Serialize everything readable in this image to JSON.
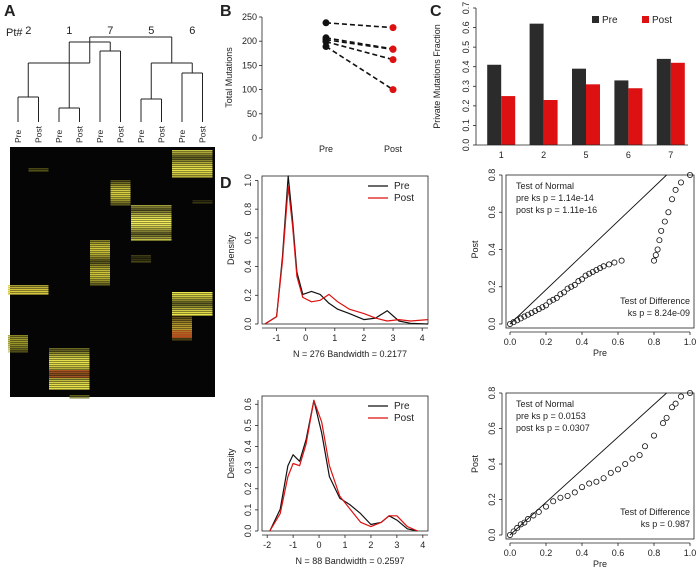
{
  "panels": {
    "a": "A",
    "b": "B",
    "c": "C",
    "d": "D"
  },
  "panelA": {
    "pt_label": "Pt#",
    "patients": [
      "2",
      "1",
      "7",
      "5",
      "6"
    ],
    "columns": [
      "Pre",
      "Post",
      "Pre",
      "Post",
      "Pre",
      "Post",
      "Pre",
      "Post",
      "Pre",
      "Post"
    ]
  },
  "chart_data": [
    {
      "id": "B",
      "type": "line",
      "ylabel": "Total Mutations",
      "categories": [
        "Pre",
        "Post"
      ],
      "ylim": [
        0,
        250
      ],
      "yticks": [
        0,
        50,
        100,
        150,
        200,
        250
      ],
      "series": [
        {
          "values": [
            238,
            228
          ]
        },
        {
          "values": [
            207,
            184
          ]
        },
        {
          "values": [
            203,
            183
          ]
        },
        {
          "values": [
            199,
            162
          ]
        },
        {
          "values": [
            189,
            100
          ]
        }
      ],
      "colors": {
        "pre": "#111111",
        "post": "#dd1111"
      }
    },
    {
      "id": "C",
      "type": "bar",
      "ylabel": "Private Mutations Fraction",
      "categories": [
        "1",
        "2",
        "5",
        "6",
        "7"
      ],
      "ylim": [
        0,
        0.7
      ],
      "yticks": [
        "0.0",
        "0.1",
        "0.2",
        "0.3",
        "0.4",
        "0.5",
        "0.6",
        "0.7"
      ],
      "legend": [
        "Pre",
        "Post"
      ],
      "legend_position": "top-right",
      "series": [
        {
          "name": "Pre",
          "values": [
            0.41,
            0.62,
            0.39,
            0.33,
            0.44
          ],
          "color": "#2b2b2b"
        },
        {
          "name": "Post",
          "values": [
            0.25,
            0.23,
            0.31,
            0.29,
            0.42
          ],
          "color": "#dd1111"
        }
      ]
    },
    {
      "id": "D-density-1",
      "type": "line",
      "ylabel": "Density",
      "xlabel": "N = 276   Bandwidth = 0.2177",
      "xlim": [
        -1.5,
        4.2
      ],
      "ylim": [
        0,
        1.0
      ],
      "xticks": [
        "-1",
        "0",
        "1",
        "2",
        "3",
        "4"
      ],
      "yticks": [
        "0.0",
        "0.2",
        "0.4",
        "0.6",
        "0.8",
        "1.0"
      ],
      "legend": [
        "Pre",
        "Post"
      ],
      "legend_position": "top-right",
      "series": [
        {
          "name": "Pre",
          "color": "#111111",
          "x": [
            -1.4,
            -1.0,
            -0.8,
            -0.6,
            -0.45,
            -0.3,
            -0.1,
            0.2,
            0.5,
            0.8,
            1.1,
            1.5,
            2.0,
            2.4,
            2.8,
            3.2,
            3.6,
            4.2
          ],
          "y": [
            0.0,
            0.05,
            0.45,
            1.0,
            0.7,
            0.35,
            0.2,
            0.22,
            0.2,
            0.14,
            0.1,
            0.07,
            0.03,
            0.04,
            0.09,
            0.02,
            0.005,
            0.0
          ]
        },
        {
          "name": "Post",
          "color": "#dd1111",
          "x": [
            -1.4,
            -1.0,
            -0.8,
            -0.6,
            -0.45,
            -0.3,
            -0.1,
            0.2,
            0.5,
            0.8,
            1.1,
            1.5,
            2.0,
            2.4,
            2.8,
            3.2,
            3.6,
            4.2
          ],
          "y": [
            0.0,
            0.05,
            0.42,
            0.93,
            0.66,
            0.32,
            0.18,
            0.15,
            0.16,
            0.2,
            0.15,
            0.1,
            0.07,
            0.04,
            0.02,
            0.03,
            0.02,
            0.03
          ]
        }
      ]
    },
    {
      "id": "D-qq-1",
      "type": "scatter",
      "xlabel": "Pre",
      "ylabel": "Post",
      "xlim": [
        0,
        1
      ],
      "ylim": [
        0,
        0.8
      ],
      "xticks": [
        "0.0",
        "0.2",
        "0.4",
        "0.6",
        "0.8",
        "1.0"
      ],
      "yticks": [
        "0.0",
        "0.2",
        "0.4",
        "0.6",
        "0.8"
      ],
      "annotations": {
        "normal_title": "Test of Normal",
        "normal_pre": "pre ks p = 1.14e-14",
        "normal_post": "post ks p = 1.11e-16",
        "diff_title": "Test of Difference",
        "diff_ks": "ks p = 8.24e-09"
      },
      "points": [
        [
          0.0,
          0.0
        ],
        [
          0.02,
          0.01
        ],
        [
          0.04,
          0.02
        ],
        [
          0.06,
          0.03
        ],
        [
          0.08,
          0.04
        ],
        [
          0.1,
          0.05
        ],
        [
          0.12,
          0.06
        ],
        [
          0.14,
          0.07
        ],
        [
          0.16,
          0.08
        ],
        [
          0.18,
          0.09
        ],
        [
          0.2,
          0.1
        ],
        [
          0.22,
          0.12
        ],
        [
          0.24,
          0.13
        ],
        [
          0.26,
          0.14
        ],
        [
          0.28,
          0.16
        ],
        [
          0.3,
          0.17
        ],
        [
          0.32,
          0.19
        ],
        [
          0.34,
          0.2
        ],
        [
          0.36,
          0.21
        ],
        [
          0.38,
          0.23
        ],
        [
          0.4,
          0.24
        ],
        [
          0.42,
          0.26
        ],
        [
          0.44,
          0.27
        ],
        [
          0.46,
          0.28
        ],
        [
          0.48,
          0.29
        ],
        [
          0.5,
          0.3
        ],
        [
          0.52,
          0.31
        ],
        [
          0.55,
          0.32
        ],
        [
          0.58,
          0.33
        ],
        [
          0.62,
          0.34
        ],
        [
          0.8,
          0.34
        ],
        [
          0.81,
          0.37
        ],
        [
          0.82,
          0.4
        ],
        [
          0.83,
          0.45
        ],
        [
          0.84,
          0.5
        ],
        [
          0.86,
          0.55
        ],
        [
          0.88,
          0.6
        ],
        [
          0.9,
          0.67
        ],
        [
          0.92,
          0.72
        ],
        [
          0.95,
          0.76
        ],
        [
          1.0,
          0.8
        ]
      ]
    },
    {
      "id": "D-density-2",
      "type": "line",
      "ylabel": "Density",
      "xlabel": "N = 88   Bandwidth = 0.2597",
      "xlim": [
        -2.2,
        4.2
      ],
      "ylim": [
        0,
        0.62
      ],
      "xticks": [
        "-2",
        "-1",
        "0",
        "1",
        "2",
        "3",
        "4"
      ],
      "yticks": [
        "0.0",
        "0.1",
        "0.2",
        "0.3",
        "0.4",
        "0.5",
        "0.6"
      ],
      "legend": [
        "Pre",
        "Post"
      ],
      "legend_position": "top-right",
      "series": [
        {
          "name": "Pre",
          "color": "#111111",
          "x": [
            -1.9,
            -1.5,
            -1.2,
            -1.0,
            -0.75,
            -0.5,
            -0.2,
            0.1,
            0.4,
            0.8,
            1.2,
            1.6,
            2.0,
            2.4,
            2.7,
            3.0,
            3.4,
            3.8
          ],
          "y": [
            0.0,
            0.1,
            0.3,
            0.35,
            0.32,
            0.42,
            0.6,
            0.45,
            0.25,
            0.15,
            0.12,
            0.08,
            0.03,
            0.04,
            0.07,
            0.05,
            0.01,
            0.0
          ]
        },
        {
          "name": "Post",
          "color": "#dd1111",
          "x": [
            -1.9,
            -1.5,
            -1.2,
            -1.0,
            -0.75,
            -0.5,
            -0.2,
            0.1,
            0.4,
            0.8,
            1.2,
            1.6,
            2.0,
            2.4,
            2.7,
            3.0,
            3.4,
            3.8
          ],
          "y": [
            0.0,
            0.08,
            0.25,
            0.31,
            0.3,
            0.4,
            0.6,
            0.5,
            0.3,
            0.16,
            0.1,
            0.04,
            0.02,
            0.04,
            0.07,
            0.07,
            0.02,
            0.0
          ]
        }
      ]
    },
    {
      "id": "D-qq-2",
      "type": "scatter",
      "xlabel": "Pre",
      "ylabel": "Post",
      "xlim": [
        0,
        1
      ],
      "ylim": [
        0,
        0.8
      ],
      "xticks": [
        "0.0",
        "0.2",
        "0.4",
        "0.6",
        "0.8",
        "1.0"
      ],
      "yticks": [
        "0.0",
        "0.2",
        "0.4",
        "0.6",
        "0.8"
      ],
      "annotations": {
        "normal_title": "Test of Normal",
        "normal_pre": "pre ks p = 0.0153",
        "normal_post": "post ks p = 0.0307",
        "diff_title": "Test of Difference",
        "diff_ks": "ks p = 0.987"
      },
      "points": [
        [
          0.0,
          0.0
        ],
        [
          0.02,
          0.02
        ],
        [
          0.04,
          0.04
        ],
        [
          0.06,
          0.06
        ],
        [
          0.08,
          0.07
        ],
        [
          0.1,
          0.09
        ],
        [
          0.13,
          0.11
        ],
        [
          0.16,
          0.13
        ],
        [
          0.2,
          0.16
        ],
        [
          0.24,
          0.19
        ],
        [
          0.28,
          0.21
        ],
        [
          0.32,
          0.22
        ],
        [
          0.36,
          0.24
        ],
        [
          0.4,
          0.27
        ],
        [
          0.44,
          0.29
        ],
        [
          0.48,
          0.3
        ],
        [
          0.52,
          0.32
        ],
        [
          0.56,
          0.35
        ],
        [
          0.6,
          0.37
        ],
        [
          0.64,
          0.4
        ],
        [
          0.68,
          0.43
        ],
        [
          0.72,
          0.45
        ],
        [
          0.75,
          0.5
        ],
        [
          0.8,
          0.56
        ],
        [
          0.85,
          0.63
        ],
        [
          0.87,
          0.66
        ],
        [
          0.9,
          0.72
        ],
        [
          0.92,
          0.74
        ],
        [
          0.95,
          0.78
        ],
        [
          1.0,
          0.8
        ]
      ]
    }
  ]
}
